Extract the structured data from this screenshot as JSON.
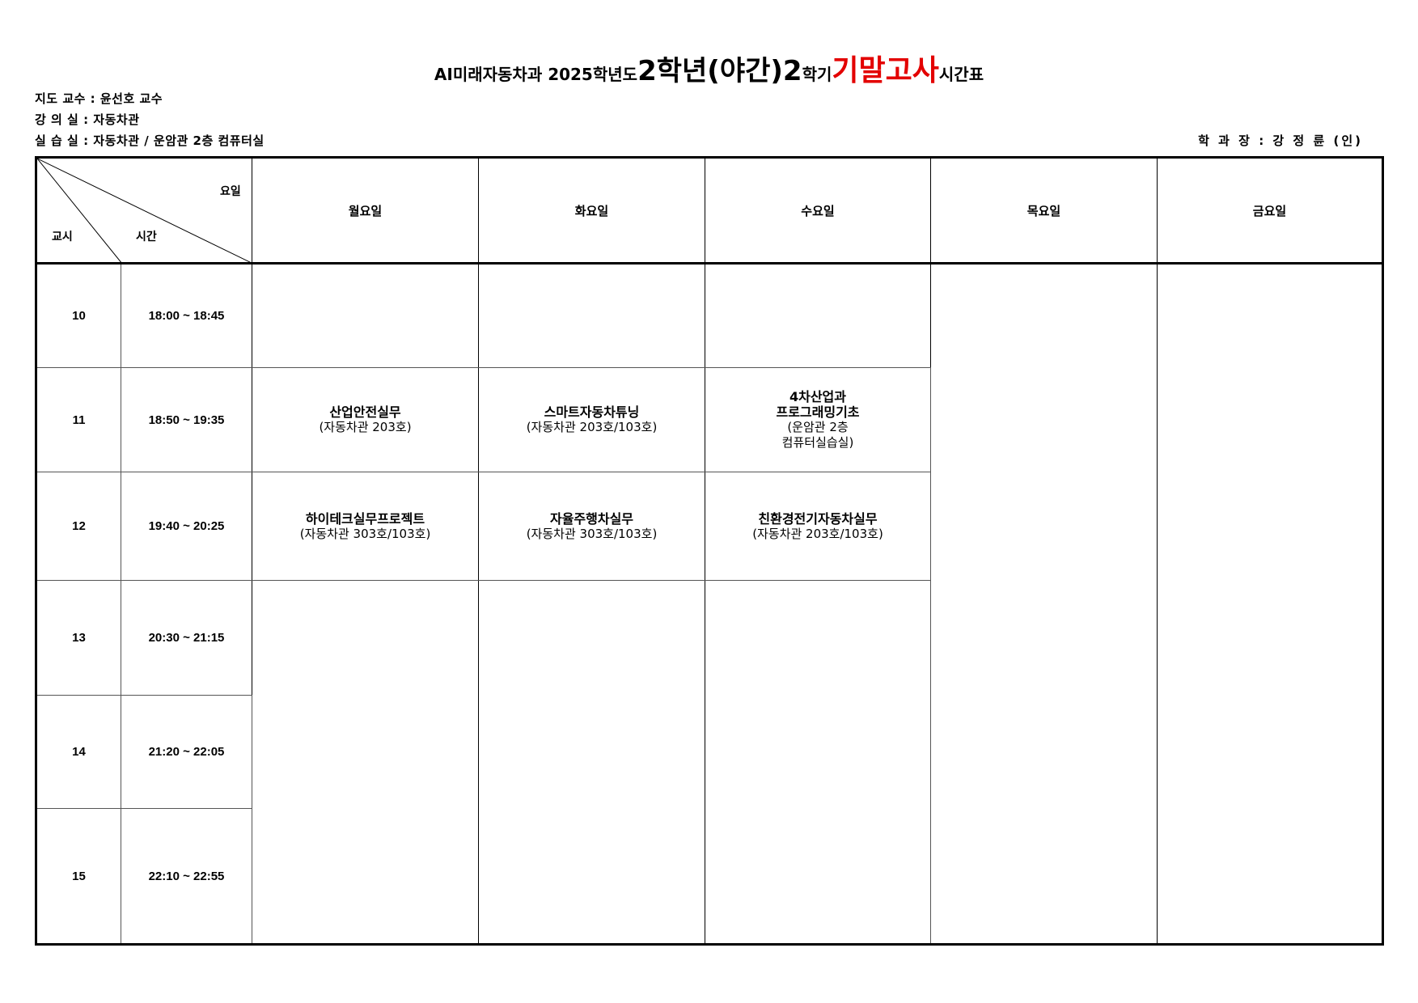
{
  "title": {
    "part1": "AI미래자동차과  2025학년도 ",
    "part2": "2학년(야간)",
    "part3": " 2",
    "part4": "학기 ",
    "part5": "기말고사",
    "part6": " 시간표",
    "accent_color": "#e30000"
  },
  "info": {
    "advisor": "지도 교수 : 윤선호 교수",
    "lecture_room": "강  의  실 : 자동차관",
    "lab_room": "실  습  실 : 자동차관 / 운암관 2층 컴퓨터실",
    "head": "학 과 장 :  강 정 륜  (인)"
  },
  "table": {
    "corner": {
      "day": "요일",
      "period": "교시",
      "time": "시간"
    },
    "days": [
      "월요일",
      "화요일",
      "수요일",
      "목요일",
      "금요일"
    ],
    "periods": [
      {
        "num": "10",
        "time": "18:00 ~ 18:45"
      },
      {
        "num": "11",
        "time": "18:50 ~ 19:35"
      },
      {
        "num": "12",
        "time": "19:40 ~ 20:25"
      },
      {
        "num": "13",
        "time": "20:30 ~ 21:15"
      },
      {
        "num": "14",
        "time": "21:20 ~ 22:05"
      },
      {
        "num": "15",
        "time": "22:10 ~ 22:55"
      }
    ],
    "classes": {
      "mon11": {
        "subject": "산업안전실무",
        "room": "(자동차관 203호)"
      },
      "tue11": {
        "subject": "스마트자동차튜닝",
        "room": "(자동차관 203호/103호)"
      },
      "wed11": {
        "subject": "4차산업과\n프로그래밍기초",
        "room": "(운암관 2층\n컴퓨터실습실)"
      },
      "mon12": {
        "subject": "하이테크실무프로젝트",
        "room": "(자동차관 303호/103호)"
      },
      "tue12": {
        "subject": "자율주행차실무",
        "room": "(자동차관 303호/103호)"
      },
      "wed12": {
        "subject": "친환경전기자동차실무",
        "room": "(자동차관 203호/103호)"
      }
    }
  }
}
